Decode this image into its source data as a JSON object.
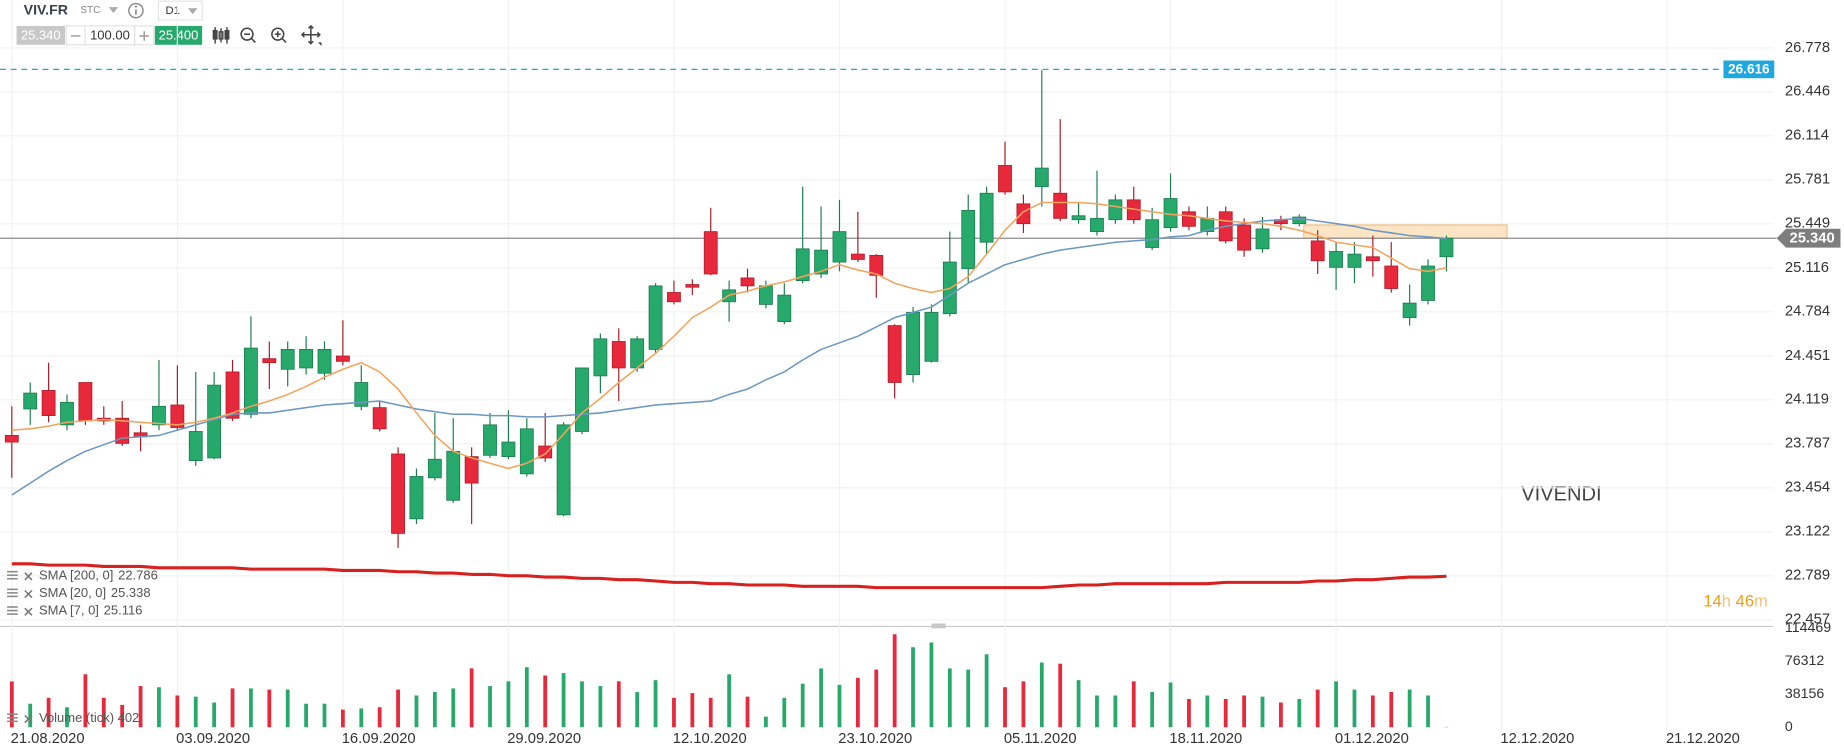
{
  "toolbar": {
    "symbol": "VIV.FR",
    "market": "STC",
    "timeframe": "D1",
    "sell": "25.340",
    "volume": "100.00",
    "buy": "25.400"
  },
  "chart_data": {
    "type": "candlestick",
    "title": "VIVENDI",
    "xlim": [
      -0.643,
      95.76
    ],
    "xticks": [
      {
        "value": 0,
        "label": "21.08.2020"
      },
      {
        "value": 9,
        "label": "03.09.2020"
      },
      {
        "value": 18,
        "label": "16.09.2020"
      },
      {
        "value": 27,
        "label": "29.09.2020"
      },
      {
        "value": 36,
        "label": "12.10.2020"
      },
      {
        "value": 45,
        "label": "23.10.2020"
      },
      {
        "value": 54,
        "label": "05.11.2020"
      },
      {
        "value": 63,
        "label": "18.11.2020"
      },
      {
        "value": 72,
        "label": "01.12.2020"
      },
      {
        "value": 81,
        "label": "12.12.2020"
      },
      {
        "value": 90,
        "label": "21.12.2020"
      }
    ],
    "ylim": [
      22.42,
      27.14
    ],
    "yticks": [
      26.778,
      26.446,
      26.114,
      25.781,
      25.449,
      25.116,
      24.784,
      24.451,
      24.119,
      23.787,
      23.454,
      23.122,
      22.789,
      22.457
    ],
    "grid": true,
    "up_color": "#27a96c",
    "down_color": "#e8283b",
    "open": [
      23.85,
      24.05,
      24.19,
      23.93,
      24.25,
      23.98,
      23.98,
      23.87,
      23.93,
      24.08,
      23.66,
      23.68,
      24.33,
      24.01,
      24.43,
      24.35,
      24.36,
      24.32,
      24.45,
      24.07,
      24.06,
      23.71,
      23.22,
      23.53,
      23.36,
      23.69,
      23.7,
      23.69,
      23.56,
      23.77,
      23.25,
      23.88,
      24.3,
      24.56,
      24.36,
      24.5,
      24.93,
      24.99,
      25.39,
      24.86,
      25.04,
      24.84,
      24.71,
      25.02,
      25.07,
      25.16,
      25.22,
      25.21,
      24.68,
      24.31,
      24.41,
      24.77,
      25.11,
      25.31,
      25.89,
      25.6,
      25.73,
      25.68,
      25.48,
      25.39,
      25.48,
      25.63,
      25.27,
      25.42,
      25.54,
      25.39,
      25.54,
      25.44,
      25.26,
      25.48,
      25.45,
      25.32,
      25.12,
      25.12,
      25.2,
      25.13,
      24.74,
      24.87,
      25.2
    ],
    "high": [
      24.07,
      24.25,
      24.4,
      24.16,
      24.25,
      24.07,
      24.11,
      23.93,
      24.42,
      24.38,
      24.33,
      24.33,
      24.42,
      24.75,
      24.56,
      24.56,
      24.6,
      24.56,
      24.72,
      24.38,
      24.11,
      23.76,
      23.6,
      24.02,
      23.98,
      23.76,
      24.02,
      24.04,
      23.98,
      24.02,
      23.95,
      24.36,
      24.62,
      24.66,
      24.6,
      25.0,
      25.02,
      25.03,
      25.57,
      25.02,
      25.11,
      25.02,
      25.0,
      25.73,
      25.58,
      25.63,
      25.54,
      25.22,
      24.69,
      24.82,
      24.84,
      25.39,
      25.67,
      25.73,
      26.07,
      25.67,
      26.61,
      26.24,
      25.61,
      25.85,
      25.67,
      25.73,
      25.57,
      25.83,
      25.58,
      25.58,
      25.58,
      25.49,
      25.5,
      25.51,
      25.52,
      25.4,
      25.31,
      25.31,
      25.36,
      25.31,
      24.99,
      25.18,
      25.36
    ],
    "low": [
      23.53,
      23.93,
      23.95,
      23.89,
      23.93,
      23.93,
      23.77,
      23.73,
      23.89,
      23.89,
      23.62,
      23.67,
      23.96,
      23.98,
      24.2,
      24.22,
      24.31,
      24.27,
      24.38,
      24.04,
      23.88,
      23.0,
      23.18,
      23.51,
      23.34,
      23.18,
      23.68,
      23.67,
      23.54,
      23.65,
      23.24,
      23.86,
      24.17,
      24.11,
      24.33,
      24.47,
      24.84,
      24.91,
      25.06,
      24.71,
      24.93,
      24.81,
      24.69,
      25.0,
      25.04,
      25.09,
      25.16,
      24.89,
      24.13,
      24.25,
      24.4,
      24.75,
      25.0,
      25.22,
      25.67,
      25.38,
      25.58,
      25.47,
      25.45,
      25.36,
      25.45,
      25.45,
      25.25,
      25.39,
      25.4,
      25.36,
      25.3,
      25.2,
      25.23,
      25.4,
      25.43,
      25.07,
      24.95,
      25.0,
      25.05,
      24.93,
      24.68,
      24.84,
      25.09
    ],
    "close": [
      23.8,
      24.17,
      24.0,
      24.1,
      23.96,
      23.96,
      23.79,
      23.84,
      24.07,
      23.91,
      23.88,
      24.23,
      23.98,
      24.51,
      24.4,
      24.5,
      24.5,
      24.5,
      24.41,
      24.25,
      23.9,
      23.11,
      23.54,
      23.67,
      23.73,
      23.49,
      23.93,
      23.8,
      23.9,
      23.68,
      23.93,
      24.36,
      24.58,
      24.36,
      24.58,
      24.98,
      24.86,
      24.97,
      25.07,
      24.95,
      24.98,
      24.98,
      24.91,
      25.26,
      25.25,
      25.39,
      25.18,
      25.06,
      24.25,
      24.78,
      24.78,
      25.16,
      25.55,
      25.68,
      25.69,
      25.45,
      25.87,
      25.49,
      25.51,
      25.49,
      25.63,
      25.48,
      25.48,
      25.64,
      25.43,
      25.49,
      25.32,
      25.25,
      25.41,
      25.45,
      25.5,
      25.17,
      25.24,
      25.22,
      25.17,
      24.96,
      24.85,
      25.13,
      25.34
    ],
    "series": [
      {
        "name": "SMA [200, 0]",
        "color": "#d8201f",
        "values": [
          22.88,
          22.88,
          22.87,
          22.87,
          22.87,
          22.86,
          22.86,
          22.86,
          22.85,
          22.85,
          22.85,
          22.85,
          22.85,
          22.84,
          22.84,
          22.84,
          22.84,
          22.84,
          22.83,
          22.83,
          22.83,
          22.82,
          22.82,
          22.81,
          22.81,
          22.8,
          22.8,
          22.79,
          22.79,
          22.78,
          22.78,
          22.77,
          22.77,
          22.76,
          22.76,
          22.75,
          22.74,
          22.74,
          22.73,
          22.73,
          22.72,
          22.72,
          22.72,
          22.71,
          22.71,
          22.71,
          22.71,
          22.7,
          22.7,
          22.7,
          22.7,
          22.7,
          22.7,
          22.7,
          22.7,
          22.7,
          22.7,
          22.71,
          22.72,
          22.72,
          22.73,
          22.73,
          22.73,
          22.73,
          22.73,
          22.73,
          22.74,
          22.74,
          22.74,
          22.74,
          22.74,
          22.75,
          22.75,
          22.76,
          22.76,
          22.77,
          22.78,
          22.78,
          22.786
        ]
      },
      {
        "name": "SMA [20, 0]",
        "color": "#6a98c2",
        "values": [
          23.4,
          23.49,
          23.58,
          23.66,
          23.73,
          23.78,
          23.83,
          23.84,
          23.85,
          23.89,
          23.93,
          23.97,
          24.01,
          24.02,
          24.02,
          24.04,
          24.06,
          24.08,
          24.09,
          24.1,
          24.11,
          24.08,
          24.05,
          24.03,
          24.01,
          24.01,
          24.0,
          24.0,
          23.99,
          23.99,
          24.0,
          24.01,
          24.02,
          24.04,
          24.06,
          24.08,
          24.09,
          24.1,
          24.11,
          24.16,
          24.2,
          24.27,
          24.33,
          24.42,
          24.5,
          24.55,
          24.6,
          24.67,
          24.74,
          24.78,
          24.82,
          24.91,
          25.0,
          25.07,
          25.14,
          25.18,
          25.22,
          25.25,
          25.27,
          25.29,
          25.31,
          25.32,
          25.33,
          25.35,
          25.36,
          25.4,
          25.43,
          25.45,
          25.47,
          25.48,
          25.49,
          25.47,
          25.45,
          25.43,
          25.4,
          25.38,
          25.36,
          25.35,
          25.338
        ]
      },
      {
        "name": "SMA [7, 0]",
        "color": "#f3a45c",
        "values": [
          23.89,
          23.9,
          23.92,
          23.95,
          23.96,
          23.97,
          23.96,
          23.95,
          23.94,
          23.93,
          23.95,
          23.98,
          24.02,
          24.07,
          24.11,
          24.16,
          24.22,
          24.29,
          24.35,
          24.4,
          24.33,
          24.2,
          24.02,
          23.85,
          23.73,
          23.68,
          23.64,
          23.6,
          23.64,
          23.71,
          23.86,
          24.02,
          24.13,
          24.25,
          24.36,
          24.47,
          24.6,
          24.74,
          24.82,
          24.91,
          24.94,
          24.98,
          25.01,
          25.05,
          25.09,
          25.14,
          25.1,
          25.07,
          25.0,
          24.96,
          24.93,
          24.96,
          25.05,
          25.22,
          25.4,
          25.54,
          25.61,
          25.61,
          25.61,
          25.6,
          25.58,
          25.56,
          25.54,
          25.52,
          25.51,
          25.49,
          25.47,
          25.46,
          25.45,
          25.43,
          25.4,
          25.36,
          25.31,
          25.29,
          25.27,
          25.19,
          25.11,
          25.09,
          25.116
        ]
      }
    ],
    "volume": {
      "name": "Volume (tick)",
      "ylim": [
        0,
        116000
      ],
      "yticks": [
        114469,
        76312,
        38156,
        0
      ],
      "values": [
        53100,
        27250,
        34070,
        23170,
        61320,
        34070,
        25890,
        47690,
        46330,
        36790,
        35430,
        28620,
        44970,
        44970,
        43610,
        43610,
        27250,
        27250,
        20440,
        21800,
        23170,
        43610,
        36790,
        40880,
        44970,
        68140,
        47690,
        53150,
        69500,
        59960,
        62680,
        53150,
        47690,
        53150,
        40880,
        54510,
        34070,
        39520,
        34070,
        61320,
        35430,
        12260,
        34070,
        50420,
        68140,
        49060,
        57230,
        66770,
        107650,
        92660,
        98110,
        68140,
        66770,
        84490,
        46330,
        53150,
        74950,
        73590,
        54510,
        36790,
        36790,
        53150,
        40880,
        51780,
        32700,
        36790,
        32700,
        36790,
        35430,
        28620,
        32700,
        43610,
        53150,
        43610,
        36790,
        40880,
        43610,
        36790,
        402
      ]
    },
    "reference_line": {
      "value": 26.616,
      "color": "#1fa8e0"
    },
    "price_line": {
      "value": 25.34,
      "label": "25.340"
    },
    "zone": [
      25.34,
      25.44
    ],
    "zone_color": "#fbdcb0",
    "countdown": [
      "14",
      "h",
      "46",
      "m"
    ]
  }
}
